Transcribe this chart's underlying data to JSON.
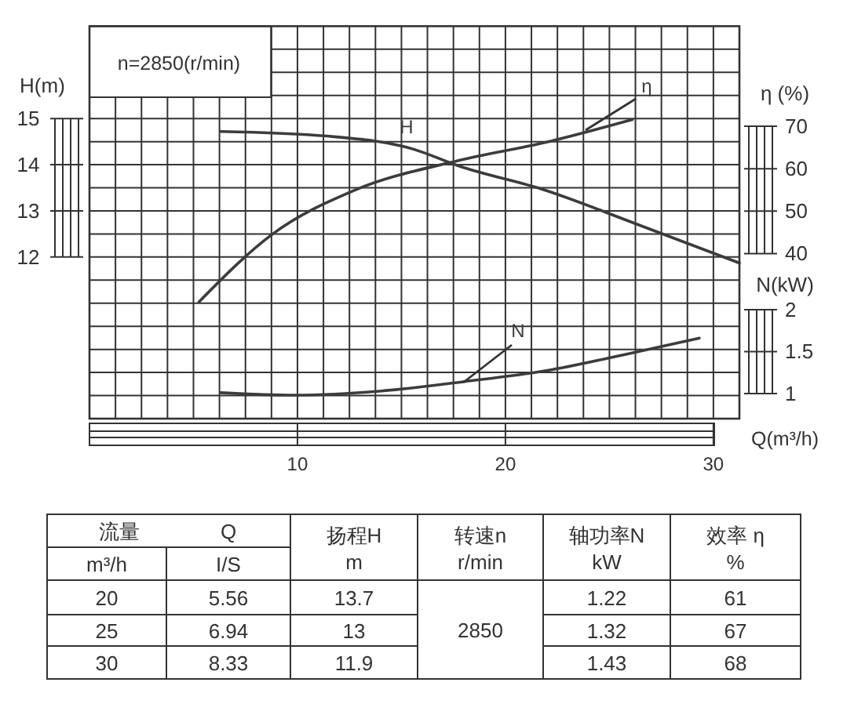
{
  "chart_data": {
    "type": "line",
    "xlabel": "Q(m³/h)",
    "ylabel": "H(m)",
    "y2label": "η (%)",
    "y3label": "N(kW)",
    "xlim": [
      0,
      31.25
    ],
    "xticks": [
      10,
      20,
      30
    ],
    "ylim": [
      8.5,
      17
    ],
    "yticks": [
      12,
      13,
      14,
      15
    ],
    "y2lim": [
      1.1,
      93.6
    ],
    "y2ticks": [
      40,
      50,
      60,
      70
    ],
    "y3lim": [
      0.7,
      5.38
    ],
    "y3ticks": [
      1,
      1.5,
      2
    ],
    "grid": true,
    "legend": false,
    "marker": "none",
    "line_style": "solid",
    "series": [
      {
        "name": "H",
        "color": "#3c3c3c",
        "axis": "y",
        "x": [
          6.31,
          11.42,
          15.62,
          17.71,
          21.9,
          26.1,
          31.25
        ],
        "values": [
          14.72,
          14.62,
          14.33,
          13.98,
          13.45,
          12.75,
          11.87
        ]
      },
      {
        "name": "η",
        "color": "#3c3c3c",
        "axis": "y2",
        "x": [
          5.26,
          8.8,
          12.73,
          17.71,
          21.9,
          26.1
        ],
        "values": [
          28.6,
          44.6,
          54.9,
          61.9,
          66.2,
          71.6
        ]
      },
      {
        "name": "N",
        "color": "#3c3c3c",
        "axis": "y3",
        "x": [
          6.31,
          9.85,
          14.04,
          17.96,
          21.9,
          25.83,
          29.32
        ],
        "values": [
          1.01,
          0.98,
          1.03,
          1.14,
          1.27,
          1.47,
          1.66
        ]
      }
    ],
    "annotations": [
      "n=2850(r/min)",
      "流量",
      "Q",
      "扬程H",
      "转速n",
      "轴功率N",
      "效率 η",
      "m³/h",
      "I/S",
      "m",
      "r/min",
      "kW",
      "%",
      "2850",
      "20",
      "5.56",
      "13.7",
      "1.22",
      "61",
      "25",
      "6.94",
      "13",
      "1.32",
      "67",
      "30",
      "8.33",
      "11.9",
      "1.43",
      "68"
    ]
  }
}
